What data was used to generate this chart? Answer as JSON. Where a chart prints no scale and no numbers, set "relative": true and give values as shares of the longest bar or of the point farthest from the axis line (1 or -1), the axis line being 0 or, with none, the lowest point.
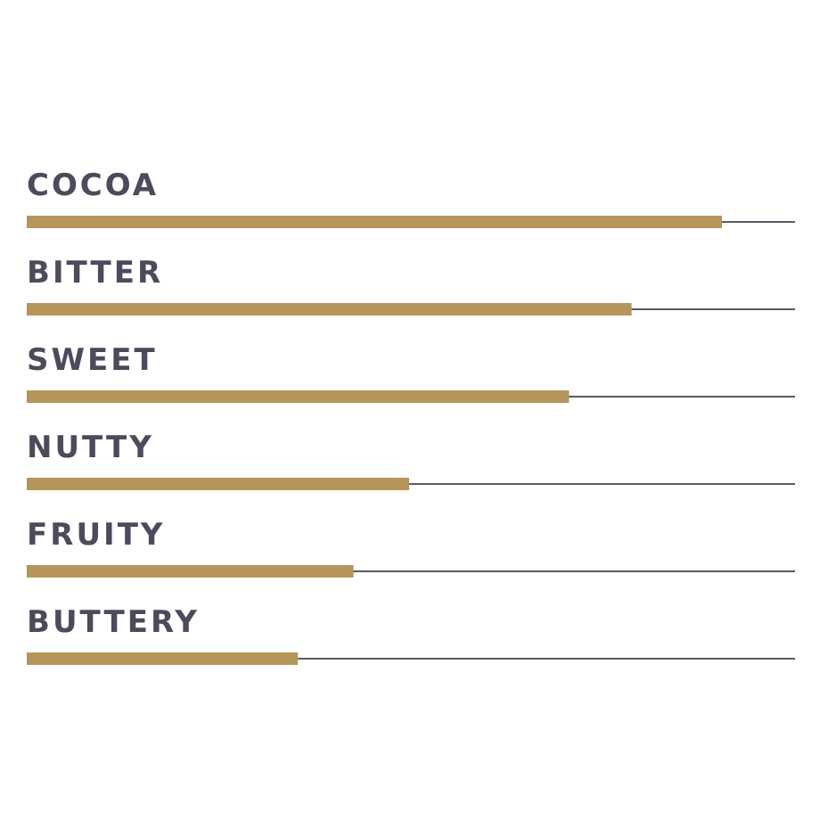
{
  "chart_data": {
    "type": "bar",
    "orientation": "horizontal",
    "relative": true,
    "categories": [
      "COCOA",
      "BITTER",
      "SWEET",
      "NUTTY",
      "FRUITY",
      "BUTTERY"
    ],
    "values": [
      1,
      0.87,
      0.78,
      0.55,
      0.47,
      0.39
    ],
    "color": "#b5955a"
  }
}
